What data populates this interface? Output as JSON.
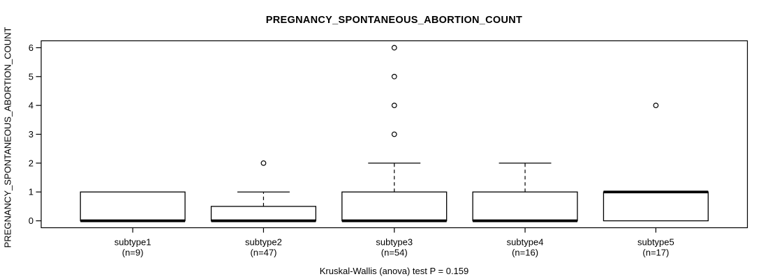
{
  "figure": {
    "title": "PREGNANCY_SPONTANEOUS_ABORTION_COUNT",
    "y_axis_label": "PREGNANCY_SPONTANEOUS_ABORTION_COUNT",
    "caption": "Kruskal-Wallis (anova) test P = 0.159"
  },
  "chart_data": {
    "type": "boxplot",
    "title": "PREGNANCY_SPONTANEOUS_ABORTION_COUNT",
    "ylabel": "PREGNANCY_SPONTANEOUS_ABORTION_COUNT",
    "xlabel": "",
    "footer": "Kruskal-Wallis (anova) test P = 0.159",
    "ylim": [
      0,
      6
    ],
    "y_ticks": [
      0,
      1,
      2,
      3,
      4,
      5,
      6
    ],
    "y_tick_labels": [
      "0",
      "1",
      "2",
      "3",
      "4",
      "5",
      "6"
    ],
    "grid": false,
    "legend": null,
    "groups": [
      {
        "label": "subtype1",
        "n_label": "(n=9)",
        "n": 9,
        "q1": 0,
        "median": 0,
        "q3": 1,
        "whisker_low": 0,
        "whisker_high": 1,
        "outliers": []
      },
      {
        "label": "subtype2",
        "n_label": "(n=47)",
        "n": 47,
        "q1": 0,
        "median": 0,
        "q3": 0.5,
        "whisker_low": 0,
        "whisker_high": 1,
        "outliers": [
          2
        ]
      },
      {
        "label": "subtype3",
        "n_label": "(n=54)",
        "n": 54,
        "q1": 0,
        "median": 0,
        "q3": 1,
        "whisker_low": 0,
        "whisker_high": 2,
        "outliers": [
          3,
          4,
          5,
          6
        ]
      },
      {
        "label": "subtype4",
        "n_label": "(n=16)",
        "n": 16,
        "q1": 0,
        "median": 0,
        "q3": 1,
        "whisker_low": 0,
        "whisker_high": 2,
        "outliers": []
      },
      {
        "label": "subtype5",
        "n_label": "(n=17)",
        "n": 17,
        "q1": 0,
        "median": 1,
        "q3": 1,
        "whisker_low": 0,
        "whisker_high": 1,
        "outliers": [
          4
        ]
      }
    ],
    "colors": {
      "line": "#000000",
      "box_fill": "#ffffff",
      "background": "#ffffff",
      "text": "#000000"
    }
  }
}
